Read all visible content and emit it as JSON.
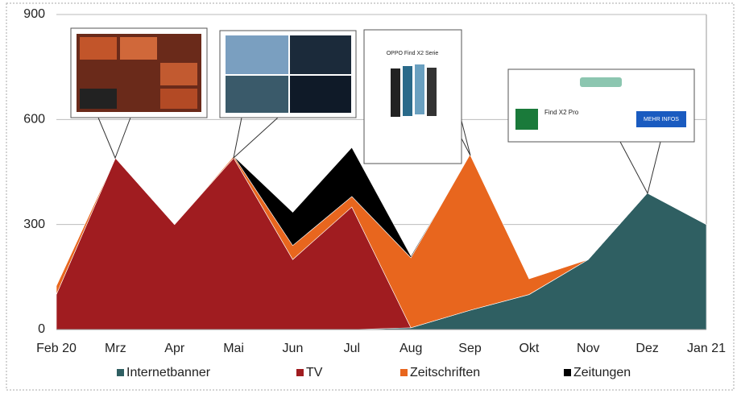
{
  "chart_data": {
    "type": "stacked-area",
    "categories": [
      "Feb 20",
      "Mrz",
      "Apr",
      "Mai",
      "Jun",
      "Jul",
      "Aug",
      "Sep",
      "Okt",
      "Nov",
      "Dez",
      "Jan 21"
    ],
    "series": [
      {
        "name": "Internetbanner",
        "color": "#2f5f62",
        "values": [
          0,
          0,
          0,
          0,
          0,
          0,
          5,
          55,
          100,
          200,
          390,
          300
        ]
      },
      {
        "name": "TV",
        "color": "#a01c20",
        "values": [
          100,
          490,
          300,
          490,
          200,
          350,
          0,
          0,
          0,
          0,
          0,
          0
        ]
      },
      {
        "name": "Zeitschriften",
        "color": "#e8661e",
        "values": [
          25,
          0,
          0,
          5,
          40,
          30,
          200,
          445,
          45,
          0,
          0,
          0
        ]
      },
      {
        "name": "Zeitungen",
        "color": "#000000",
        "values": [
          0,
          0,
          0,
          0,
          95,
          140,
          5,
          0,
          0,
          0,
          0,
          0
        ]
      }
    ],
    "ylim": [
      0,
      900
    ],
    "yticks": [
      0,
      300,
      600,
      900
    ],
    "grid": true,
    "legend": "bottom",
    "annotations": [
      "OPPO Find X2 Serie",
      "Find X2 Pro",
      "MEHR INFOS"
    ]
  }
}
